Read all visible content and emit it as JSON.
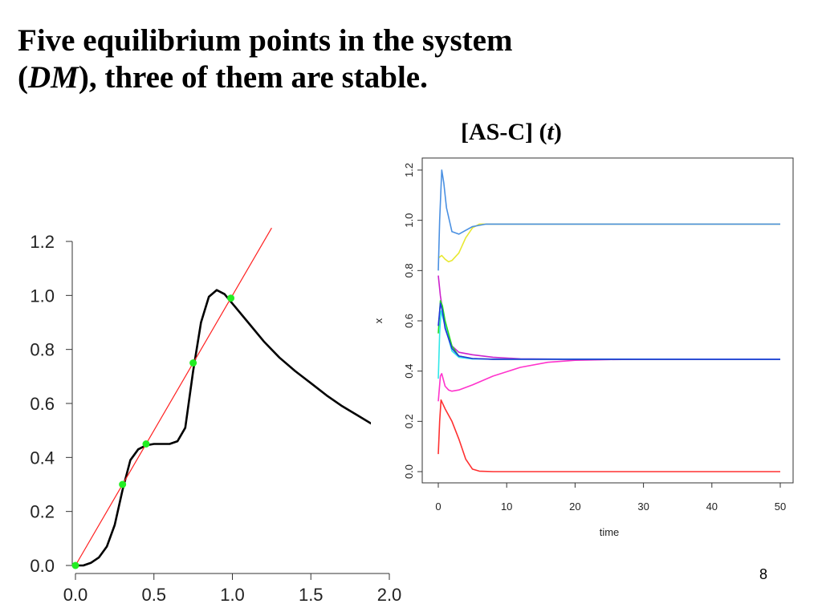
{
  "slide": {
    "title_line1": "Five equilibrium points in the system",
    "title_dm": "DM",
    "title_line2_rest": "), three of them are stable.",
    "subtitle_main": "[AS-C] (",
    "subtitle_var": "t",
    "subtitle_close": ")",
    "page_number": "8"
  },
  "chart_data": [
    {
      "type": "line",
      "title": "",
      "xlabel": "",
      "ylabel": "",
      "xlim": [
        0,
        2.0
      ],
      "ylim": [
        0,
        1.2
      ],
      "x_ticks": [
        "0.0",
        "0.5",
        "1.0",
        "1.5",
        "2.0"
      ],
      "y_ticks": [
        "0.0",
        "0.2",
        "0.4",
        "0.6",
        "0.8",
        "1.0",
        "1.2"
      ],
      "grid": false,
      "colors": {
        "curve": "#000000",
        "identity": "#ff2020",
        "points": "#22ee22"
      },
      "series": [
        {
          "color": "#000000",
          "points": [
            [
              0.0,
              0.0
            ],
            [
              0.05,
              0.0
            ],
            [
              0.1,
              0.01
            ],
            [
              0.15,
              0.03
            ],
            [
              0.2,
              0.07
            ],
            [
              0.25,
              0.15
            ],
            [
              0.3,
              0.28
            ],
            [
              0.35,
              0.39
            ],
            [
              0.4,
              0.43
            ],
            [
              0.45,
              0.445
            ],
            [
              0.5,
              0.45
            ],
            [
              0.55,
              0.45
            ],
            [
              0.6,
              0.45
            ],
            [
              0.65,
              0.46
            ],
            [
              0.7,
              0.51
            ],
            [
              0.75,
              0.72
            ],
            [
              0.8,
              0.9
            ],
            [
              0.85,
              0.995
            ],
            [
              0.9,
              1.02
            ],
            [
              0.95,
              1.005
            ],
            [
              1.0,
              0.97
            ],
            [
              1.1,
              0.9
            ],
            [
              1.2,
              0.83
            ],
            [
              1.3,
              0.77
            ],
            [
              1.4,
              0.72
            ],
            [
              1.5,
              0.675
            ],
            [
              1.6,
              0.63
            ],
            [
              1.7,
              0.59
            ],
            [
              1.8,
              0.555
            ],
            [
              1.9,
              0.52
            ]
          ]
        },
        {
          "color": "#ff2020",
          "points": [
            [
              0.0,
              0.0
            ],
            [
              1.25,
              1.25
            ]
          ]
        }
      ],
      "equilibrium_points": [
        [
          0.0,
          0.0
        ],
        [
          0.3,
          0.3
        ],
        [
          0.45,
          0.45
        ],
        [
          0.75,
          0.75
        ],
        [
          0.99,
          0.99
        ]
      ]
    },
    {
      "type": "line",
      "title": "",
      "xlabel": "time",
      "ylabel": "x",
      "xlim": [
        0,
        50
      ],
      "ylim": [
        0,
        1.2
      ],
      "x_ticks": [
        "0",
        "10",
        "20",
        "30",
        "40",
        "50"
      ],
      "y_ticks": [
        "0.0",
        "0.2",
        "0.4",
        "0.6",
        "0.8",
        "1.0",
        "1.2"
      ],
      "grid": false,
      "series": [
        {
          "color": "#e8e832",
          "points": [
            [
              0,
              0.85
            ],
            [
              0.5,
              0.86
            ],
            [
              1,
              0.845
            ],
            [
              1.5,
              0.835
            ],
            [
              2,
              0.84
            ],
            [
              3,
              0.87
            ],
            [
              4,
              0.93
            ],
            [
              5,
              0.97
            ],
            [
              6,
              0.985
            ],
            [
              8,
              0.985
            ],
            [
              50,
              0.985
            ]
          ]
        },
        {
          "color": "#4a90e2",
          "points": [
            [
              0,
              0.8
            ],
            [
              0.2,
              1.0
            ],
            [
              0.5,
              1.2
            ],
            [
              0.8,
              1.15
            ],
            [
              1.2,
              1.05
            ],
            [
              2,
              0.955
            ],
            [
              3,
              0.945
            ],
            [
              4,
              0.96
            ],
            [
              5,
              0.975
            ],
            [
              7,
              0.985
            ],
            [
              10,
              0.985
            ],
            [
              50,
              0.985
            ]
          ]
        },
        {
          "color": "#ff3030",
          "points": [
            [
              0,
              0.07
            ],
            [
              0.2,
              0.2
            ],
            [
              0.4,
              0.285
            ],
            [
              1,
              0.25
            ],
            [
              2,
              0.2
            ],
            [
              3,
              0.13
            ],
            [
              4,
              0.05
            ],
            [
              5,
              0.01
            ],
            [
              6,
              0.002
            ],
            [
              8,
              0.0
            ],
            [
              50,
              0.0
            ]
          ]
        },
        {
          "color": "#ff33cc",
          "points": [
            [
              0,
              0.28
            ],
            [
              0.3,
              0.38
            ],
            [
              0.5,
              0.39
            ],
            [
              1,
              0.34
            ],
            [
              1.5,
              0.325
            ],
            [
              2,
              0.32
            ],
            [
              3,
              0.325
            ],
            [
              5,
              0.345
            ],
            [
              8,
              0.38
            ],
            [
              12,
              0.415
            ],
            [
              16,
              0.435
            ],
            [
              20,
              0.443
            ],
            [
              25,
              0.446
            ],
            [
              30,
              0.447
            ],
            [
              50,
              0.447
            ]
          ]
        },
        {
          "color": "#cc22cc",
          "points": [
            [
              0,
              0.78
            ],
            [
              0.3,
              0.7
            ],
            [
              1,
              0.58
            ],
            [
              2,
              0.5
            ],
            [
              3,
              0.475
            ],
            [
              5,
              0.465
            ],
            [
              8,
              0.455
            ],
            [
              12,
              0.449
            ],
            [
              20,
              0.447
            ],
            [
              50,
              0.447
            ]
          ]
        },
        {
          "color": "#22dd22",
          "points": [
            [
              0,
              0.55
            ],
            [
              0.3,
              0.68
            ],
            [
              0.6,
              0.66
            ],
            [
              1,
              0.6
            ],
            [
              2,
              0.5
            ],
            [
              3,
              0.46
            ],
            [
              5,
              0.45
            ],
            [
              8,
              0.447
            ],
            [
              50,
              0.447
            ]
          ]
        },
        {
          "color": "#30e8e8",
          "points": [
            [
              0,
              0.37
            ],
            [
              0.2,
              0.55
            ],
            [
              0.4,
              0.64
            ],
            [
              1,
              0.58
            ],
            [
              2,
              0.48
            ],
            [
              3,
              0.455
            ],
            [
              5,
              0.448
            ],
            [
              50,
              0.447
            ]
          ]
        },
        {
          "color": "#2233dd",
          "points": [
            [
              0,
              0.58
            ],
            [
              0.3,
              0.67
            ],
            [
              0.6,
              0.64
            ],
            [
              1,
              0.57
            ],
            [
              2,
              0.49
            ],
            [
              3,
              0.46
            ],
            [
              5,
              0.45
            ],
            [
              8,
              0.447
            ],
            [
              50,
              0.447
            ]
          ]
        }
      ]
    }
  ]
}
